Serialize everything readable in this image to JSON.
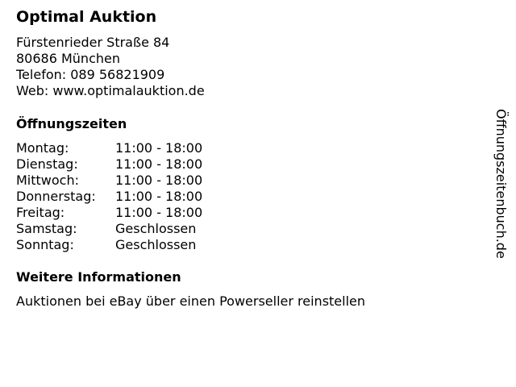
{
  "business": {
    "name": "Optimal Auktion",
    "address_lines": [
      "Fürstenrieder Straße 84",
      "80686 München",
      "Telefon: 089 56821909",
      "Web: www.optimalauktion.de"
    ]
  },
  "opening_hours": {
    "heading": "Öffnungszeiten",
    "rows": [
      {
        "day": "Montag:",
        "time": "11:00 - 18:00"
      },
      {
        "day": "Dienstag:",
        "time": "11:00 - 18:00"
      },
      {
        "day": "Mittwoch:",
        "time": "11:00 - 18:00"
      },
      {
        "day": "Donnerstag:",
        "time": "11:00 - 18:00"
      },
      {
        "day": "Freitag:",
        "time": "11:00 - 18:00"
      },
      {
        "day": "Samstag:",
        "time": "Geschlossen"
      },
      {
        "day": "Sonntag:",
        "time": "Geschlossen"
      }
    ]
  },
  "more_info": {
    "heading": "Weitere Informationen",
    "text": "Auktionen bei eBay über einen Powerseller reinstellen"
  },
  "watermark": "Öffnungszeitenbuch.de"
}
